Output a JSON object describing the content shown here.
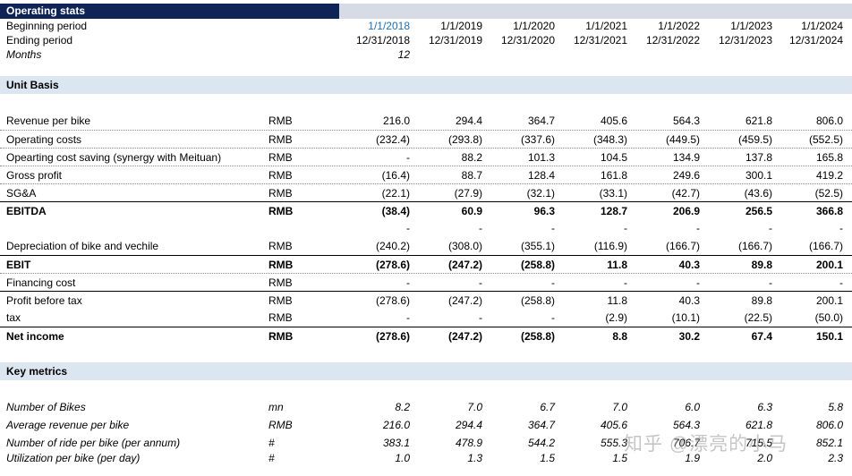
{
  "header": {
    "title": "Operating stats"
  },
  "periods": {
    "label_begin": "Beginning period",
    "label_end": "Ending period",
    "label_months": "Months",
    "begin": [
      "1/1/2018",
      "1/1/2019",
      "1/1/2020",
      "1/1/2021",
      "1/1/2022",
      "1/1/2023",
      "1/1/2024"
    ],
    "end": [
      "12/31/2018",
      "12/31/2019",
      "12/31/2020",
      "12/31/2021",
      "12/31/2022",
      "12/31/2023",
      "12/31/2024"
    ],
    "months": [
      "12",
      "",
      "",
      "",
      "",
      "",
      ""
    ]
  },
  "unit_basis": {
    "title": "Unit Basis",
    "rows": [
      {
        "label": "Revenue per bike",
        "unit": "RMB",
        "values": [
          "216.0",
          "294.4",
          "364.7",
          "405.6",
          "564.3",
          "621.8",
          "806.0"
        ]
      },
      {
        "label": "Operating costs",
        "unit": "RMB",
        "values": [
          "(232.4)",
          "(293.8)",
          "(337.6)",
          "(348.3)",
          "(449.5)",
          "(459.5)",
          "(552.5)"
        ]
      },
      {
        "label": "Opearting cost saving (synergy with Meituan)",
        "unit": "RMB",
        "values": [
          "-",
          "88.2",
          "101.3",
          "104.5",
          "134.9",
          "137.8",
          "165.8"
        ]
      },
      {
        "label": "Gross profit",
        "unit": "RMB",
        "values": [
          "(16.4)",
          "88.7",
          "128.4",
          "161.8",
          "249.6",
          "300.1",
          "419.2"
        ]
      },
      {
        "label": "SG&A",
        "unit": "RMB",
        "values": [
          "(22.1)",
          "(27.9)",
          "(32.1)",
          "(33.1)",
          "(42.7)",
          "(43.6)",
          "(52.5)"
        ]
      },
      {
        "label": "EBITDA",
        "unit": "RMB",
        "values": [
          "(38.4)",
          "60.9",
          "96.3",
          "128.7",
          "206.9",
          "256.5",
          "366.8"
        ]
      },
      {
        "label": "",
        "unit": "",
        "values": [
          "-",
          "-",
          "-",
          "-",
          "-",
          "-",
          "-"
        ]
      },
      {
        "label": "Depreciation of bike and vechile",
        "unit": "RMB",
        "values": [
          "(240.2)",
          "(308.0)",
          "(355.1)",
          "(116.9)",
          "(166.7)",
          "(166.7)",
          "(166.7)"
        ]
      },
      {
        "label": "EBIT",
        "unit": "RMB",
        "values": [
          "(278.6)",
          "(247.2)",
          "(258.8)",
          "11.8",
          "40.3",
          "89.8",
          "200.1"
        ]
      },
      {
        "label": "Financing cost",
        "unit": "RMB",
        "values": [
          "-",
          "-",
          "-",
          "-",
          "-",
          "-",
          "-"
        ]
      },
      {
        "label": "Profit before tax",
        "unit": "RMB",
        "values": [
          "(278.6)",
          "(247.2)",
          "(258.8)",
          "11.8",
          "40.3",
          "89.8",
          "200.1"
        ]
      },
      {
        "label": "tax",
        "unit": "RMB",
        "values": [
          "-",
          "-",
          "-",
          "(2.9)",
          "(10.1)",
          "(22.5)",
          "(50.0)"
        ]
      },
      {
        "label": "Net income",
        "unit": "RMB",
        "values": [
          "(278.6)",
          "(247.2)",
          "(258.8)",
          "8.8",
          "30.2",
          "67.4",
          "150.1"
        ]
      }
    ]
  },
  "key_metrics": {
    "title": "Key metrics",
    "rows": [
      {
        "label": "Number of Bikes",
        "unit": "mn",
        "values": [
          "8.2",
          "7.0",
          "6.7",
          "7.0",
          "6.0",
          "6.3",
          "5.8"
        ]
      },
      {
        "label": "Average revenue per bike",
        "unit": "RMB",
        "values": [
          "216.0",
          "294.4",
          "364.7",
          "405.6",
          "564.3",
          "621.8",
          "806.0"
        ]
      },
      {
        "label": "Number of ride per bike (per annum)",
        "unit": "#",
        "values": [
          "383.1",
          "478.9",
          "544.2",
          "555.3",
          "706.7",
          "715.5",
          "852.1"
        ]
      },
      {
        "label": "Utilization per bike (per day)",
        "unit": "#",
        "values": [
          "1.0",
          "1.3",
          "1.5",
          "1.5",
          "1.9",
          "2.0",
          "2.3"
        ]
      }
    ]
  },
  "watermark": "知乎 @漂亮的小马"
}
